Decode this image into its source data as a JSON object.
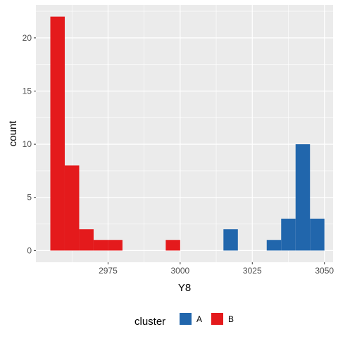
{
  "chart_data": {
    "type": "bar",
    "subtype": "stacked histogram",
    "xlabel": "Y8",
    "ylabel": "count",
    "xlim": [
      2950,
      3053
    ],
    "ylim": [
      -1.1,
      23.1
    ],
    "x_ticks": [
      2975,
      3000,
      3025,
      3050
    ],
    "x_tick_labels": [
      "2975",
      "3000",
      "3025",
      "3050"
    ],
    "y_ticks": [
      0,
      5,
      10,
      15,
      20
    ],
    "y_tick_labels": [
      "0",
      "5",
      "10",
      "15",
      "20"
    ],
    "bin_width": 5,
    "grid": true,
    "legend": {
      "title": "cluster",
      "position": "bottom",
      "order": [
        "A",
        "B"
      ]
    },
    "series": [
      {
        "name": "A",
        "color": "#2166AC",
        "bins": [
          {
            "x0": 3015,
            "x1": 3020,
            "count": 2
          },
          {
            "x0": 3030,
            "x1": 3035,
            "count": 1
          },
          {
            "x0": 3035,
            "x1": 3040,
            "count": 3
          },
          {
            "x0": 3040,
            "x1": 3045,
            "count": 10
          },
          {
            "x0": 3045,
            "x1": 3050,
            "count": 3
          }
        ]
      },
      {
        "name": "B",
        "color": "#E41A1C",
        "bins": [
          {
            "x0": 2955,
            "x1": 2960,
            "count": 22
          },
          {
            "x0": 2960,
            "x1": 2965,
            "count": 8
          },
          {
            "x0": 2965,
            "x1": 2970,
            "count": 2
          },
          {
            "x0": 2970,
            "x1": 2975,
            "count": 1
          },
          {
            "x0": 2975,
            "x1": 2980,
            "count": 1
          },
          {
            "x0": 2995,
            "x1": 3000,
            "count": 1
          }
        ]
      }
    ]
  }
}
